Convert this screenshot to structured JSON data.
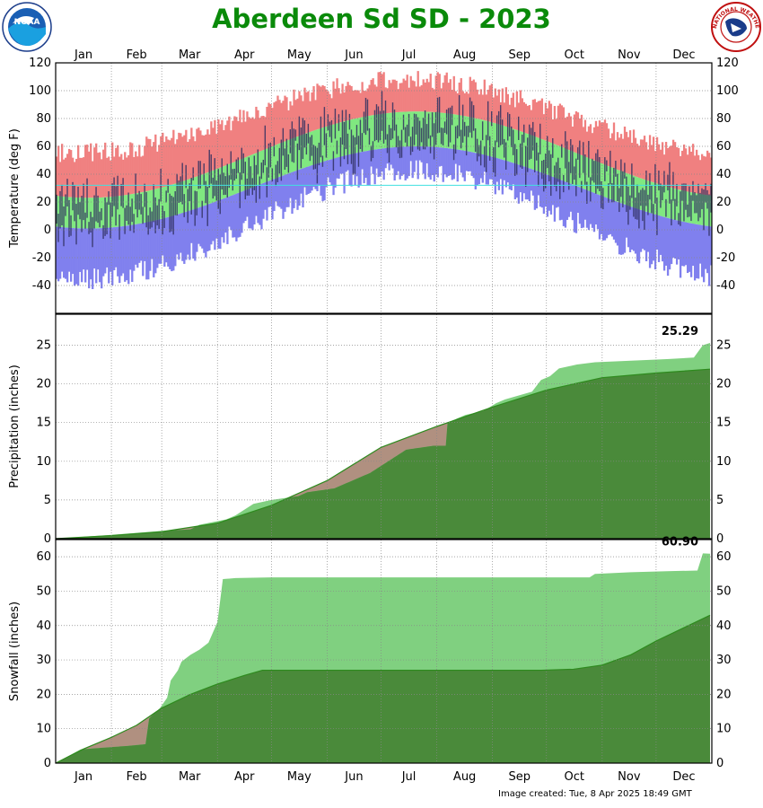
{
  "title": "Aberdeen Sd SD - 2023",
  "footer": "Image created: Tue, 8 Apr 2025 18:49 GMT",
  "logos": {
    "left": "noaa-logo",
    "right": "nws-logo",
    "left_text": "NOAA",
    "right_text": "NATIONAL WEATHER SERVICE"
  },
  "months": [
    "Jan",
    "Feb",
    "Mar",
    "Apr",
    "May",
    "Jun",
    "Jul",
    "Aug",
    "Sep",
    "Oct",
    "Nov",
    "Dec"
  ],
  "colors": {
    "record_high": "#f08080",
    "record_low": "#8080ee",
    "normal": "#80e880",
    "observed": "#303060",
    "freezing": "#40e0e0",
    "precip_obs": "#80d080",
    "precip_normal": "#4a8a3a",
    "precip_deficit": "#b09080"
  },
  "chart_data": [
    {
      "type": "bar",
      "ylabel": "Temperature (deg F)",
      "ylim": [
        -60,
        120
      ],
      "yticks": [
        120,
        100,
        80,
        60,
        40,
        20,
        0,
        -20,
        -40
      ],
      "freezing_line": 32,
      "grid": true,
      "series_shape": {
        "normal_high": {
          "min_day": 15,
          "min": 23,
          "max_day": 200,
          "max": 85
        },
        "normal_low": {
          "min_day": 15,
          "min": 1,
          "max_day": 200,
          "max": 60
        },
        "record_high": {
          "min_day": 15,
          "min": 55,
          "max_day": 195,
          "max": 108
        },
        "record_low": {
          "min_day": 15,
          "min": -35,
          "max_day": 200,
          "max": 43
        }
      }
    },
    {
      "type": "area",
      "ylabel": "Precipitation (inches)",
      "ylim": [
        0,
        29
      ],
      "yticks": [
        25,
        20,
        15,
        10,
        5,
        0
      ],
      "end_label": "25.29",
      "grid": true,
      "observed": [
        [
          0,
          0
        ],
        [
          31,
          0.5
        ],
        [
          59,
          1.0
        ],
        [
          75,
          1.2
        ],
        [
          80,
          1.8
        ],
        [
          95,
          2.5
        ],
        [
          100,
          3.0
        ],
        [
          110,
          4.5
        ],
        [
          120,
          5.0
        ],
        [
          135,
          5.5
        ],
        [
          140,
          6.0
        ],
        [
          155,
          6.5
        ],
        [
          165,
          7.5
        ],
        [
          175,
          8.5
        ],
        [
          185,
          10.0
        ],
        [
          195,
          11.5
        ],
        [
          210,
          12.0
        ],
        [
          217,
          12.0
        ],
        [
          218,
          15.0
        ],
        [
          228,
          16.0
        ],
        [
          238,
          16.5
        ],
        [
          245,
          17.5
        ],
        [
          250,
          18.0
        ],
        [
          265,
          19.0
        ],
        [
          270,
          20.5
        ],
        [
          275,
          21.0
        ],
        [
          280,
          22.0
        ],
        [
          290,
          22.5
        ],
        [
          300,
          22.8
        ],
        [
          320,
          23.0
        ],
        [
          340,
          23.2
        ],
        [
          355,
          23.4
        ],
        [
          360,
          25.0
        ],
        [
          364,
          25.29
        ]
      ],
      "normal": [
        [
          0,
          0
        ],
        [
          31,
          0.4
        ],
        [
          59,
          0.9
        ],
        [
          90,
          2.0
        ],
        [
          120,
          4.3
        ],
        [
          151,
          7.5
        ],
        [
          181,
          11.8
        ],
        [
          212,
          14.5
        ],
        [
          243,
          17.0
        ],
        [
          273,
          19.2
        ],
        [
          304,
          20.8
        ],
        [
          334,
          21.4
        ],
        [
          364,
          21.9
        ]
      ]
    },
    {
      "type": "area",
      "ylabel": "Snowfall (inches)",
      "ylim": [
        0,
        65
      ],
      "yticks": [
        60,
        50,
        40,
        30,
        20,
        10,
        0
      ],
      "end_label": "60.90",
      "grid": true,
      "observed": [
        [
          0,
          0
        ],
        [
          14,
          4.0
        ],
        [
          40,
          5.0
        ],
        [
          50,
          5.5
        ],
        [
          52,
          13.0
        ],
        [
          58,
          16.0
        ],
        [
          62,
          19.0
        ],
        [
          64,
          24.0
        ],
        [
          68,
          27.0
        ],
        [
          70,
          29.5
        ],
        [
          75,
          31.5
        ],
        [
          80,
          33.0
        ],
        [
          85,
          35.0
        ],
        [
          90,
          41.0
        ],
        [
          93,
          53.5
        ],
        [
          100,
          53.8
        ],
        [
          120,
          54.0
        ],
        [
          160,
          54.0
        ],
        [
          200,
          54.0
        ],
        [
          240,
          54.0
        ],
        [
          297,
          54.0
        ],
        [
          300,
          55.0
        ],
        [
          320,
          55.5
        ],
        [
          340,
          55.8
        ],
        [
          357,
          56.0
        ],
        [
          360,
          61.0
        ],
        [
          364,
          60.9
        ]
      ],
      "normal": [
        [
          0,
          0
        ],
        [
          15,
          4.0
        ],
        [
          31,
          7.5
        ],
        [
          45,
          11.0
        ],
        [
          59,
          16.0
        ],
        [
          75,
          20.0
        ],
        [
          90,
          23.0
        ],
        [
          105,
          25.5
        ],
        [
          115,
          27.0
        ],
        [
          135,
          27.0
        ],
        [
          180,
          27.0
        ],
        [
          220,
          27.0
        ],
        [
          270,
          27.0
        ],
        [
          288,
          27.3
        ],
        [
          304,
          28.5
        ],
        [
          320,
          31.5
        ],
        [
          334,
          35.5
        ],
        [
          350,
          39.5
        ],
        [
          364,
          43.0
        ]
      ]
    }
  ]
}
